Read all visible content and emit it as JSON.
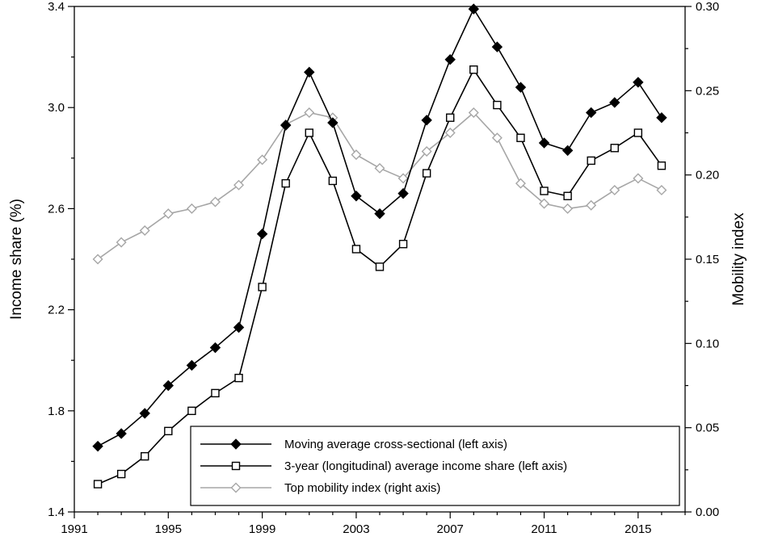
{
  "chart_data": {
    "type": "line",
    "xlim": [
      1991,
      2017
    ],
    "x_ticks": [
      1991,
      1995,
      1999,
      2003,
      2007,
      2011,
      2015
    ],
    "y_left": {
      "label": "Income share (%)",
      "lim": [
        1.4,
        3.4
      ],
      "ticks": [
        1.4,
        1.8,
        2.2,
        2.6,
        3.0,
        3.4
      ],
      "tick_labels": [
        "1.4",
        "1.8",
        "2.2",
        "2.6",
        "3.0",
        "3.4"
      ]
    },
    "y_right": {
      "label": "Mobility index",
      "lim": [
        0.0,
        0.3
      ],
      "ticks": [
        0.0,
        0.05,
        0.1,
        0.15,
        0.2,
        0.25,
        0.3
      ],
      "tick_labels": [
        "0.00",
        "0.05",
        "0.10",
        "0.15",
        "0.20",
        "0.25",
        "0.30"
      ]
    },
    "legend_position": "bottom-right",
    "x": [
      1992,
      1993,
      1994,
      1995,
      1996,
      1997,
      1998,
      1999,
      2000,
      2001,
      2002,
      2003,
      2004,
      2005,
      2006,
      2007,
      2008,
      2009,
      2010,
      2011,
      2012,
      2013,
      2014,
      2015,
      2016
    ],
    "series": [
      {
        "name": "Moving average cross-sectional (left axis)",
        "axis": "left",
        "marker": "filled-diamond",
        "color": "#000000",
        "values": [
          1.66,
          1.71,
          1.79,
          1.9,
          1.98,
          2.05,
          2.13,
          2.5,
          2.93,
          3.14,
          2.94,
          2.65,
          2.58,
          2.66,
          2.95,
          3.19,
          3.39,
          3.24,
          3.08,
          2.86,
          2.83,
          2.98,
          3.02,
          3.1,
          2.96
        ]
      },
      {
        "name": "3-year (longitudinal) average income share (left axis)",
        "axis": "left",
        "marker": "open-square",
        "color": "#000000",
        "values": [
          1.51,
          1.55,
          1.62,
          1.72,
          1.8,
          1.87,
          1.93,
          2.29,
          2.7,
          2.9,
          2.71,
          2.44,
          2.37,
          2.46,
          2.74,
          2.96,
          3.15,
          3.01,
          2.88,
          2.67,
          2.65,
          2.79,
          2.84,
          2.9,
          2.77
        ]
      },
      {
        "name": "Top mobility index (right axis)",
        "axis": "right",
        "marker": "open-diamond",
        "color": "#a6a6a6",
        "values": [
          0.15,
          0.16,
          0.167,
          0.177,
          0.18,
          0.184,
          0.194,
          0.209,
          0.23,
          0.237,
          0.234,
          0.212,
          0.204,
          0.198,
          0.214,
          0.225,
          0.237,
          0.222,
          0.195,
          0.183,
          0.18,
          0.182,
          0.191,
          0.198,
          0.191
        ]
      }
    ]
  }
}
